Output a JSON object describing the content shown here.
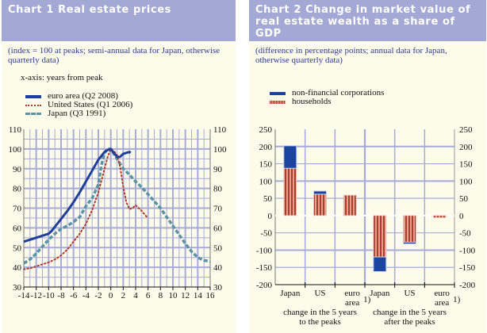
{
  "chart_data": [
    {
      "type": "line",
      "title": "Chart 1 Real estate prices",
      "subtitle": "(index = 100 at peaks; semi-annual data for Japan, otherwise quarterly data)",
      "note": "x-axis: years from peak",
      "xlabel": "years from peak",
      "ylabel": "",
      "xlim": [
        -14,
        16
      ],
      "ylim": [
        30,
        110
      ],
      "xticks": [
        "-14",
        "-12",
        "-10",
        "-8",
        "-6",
        "-4",
        "-2",
        "0",
        "2",
        "4",
        "6",
        "8",
        "10",
        "12",
        "14",
        "16"
      ],
      "yticks": [
        "30",
        "40",
        "50",
        "60",
        "70",
        "80",
        "90",
        "100",
        "110"
      ],
      "grid": true,
      "legend_position": "top-left",
      "series": [
        {
          "name": "euro area (Q2 2008)",
          "color": "#1f3f9b",
          "style": "solid",
          "x": [
            -14,
            -13,
            -12,
            -11.5,
            -11,
            -10.5,
            -10,
            -9.5,
            -9,
            -8.5,
            -8,
            -7,
            -6,
            -5,
            -4,
            -3,
            -2,
            -1,
            -0.5,
            0,
            0.5,
            1,
            1.5,
            2,
            2.5,
            3,
            3.2
          ],
          "y": [
            53,
            54,
            55,
            55.5,
            56,
            56.5,
            57,
            58.5,
            60.5,
            62.5,
            64.5,
            68.5,
            73,
            78,
            83.5,
            89,
            94.5,
            98.5,
            99.5,
            100,
            98,
            96,
            96,
            97.5,
            98,
            98.5,
            98
          ]
        },
        {
          "name": "United States (Q1 2006)",
          "color": "#b03a2e",
          "style": "dotted",
          "x": [
            -14,
            -13,
            -12,
            -11,
            -10,
            -9,
            -8,
            -7,
            -6,
            -5,
            -4,
            -3,
            -2,
            -1,
            -0.5,
            0,
            0.5,
            1,
            1.5,
            2,
            2.5,
            3,
            3.5,
            4,
            4.5,
            5,
            5.8
          ],
          "y": [
            39,
            39.5,
            40.5,
            41.5,
            42.5,
            44,
            46,
            49,
            53,
            57,
            62,
            69,
            78,
            90,
            96,
            100,
            99,
            97,
            91,
            81,
            73,
            69.5,
            70,
            71.5,
            70,
            68.5,
            65.5
          ]
        },
        {
          "name": "Japan (Q3 1991)",
          "color": "#5b93a6",
          "style": "dashed",
          "x": [
            -14,
            -13,
            -12,
            -11,
            -10,
            -9,
            -8,
            -7,
            -6,
            -5,
            -4,
            -3,
            -2,
            -1.5,
            -1,
            -0.5,
            0,
            1,
            2,
            3,
            4,
            5,
            6,
            7,
            8,
            9,
            10,
            11,
            12,
            13,
            14,
            15,
            16
          ],
          "y": [
            42,
            44,
            47,
            50.5,
            54,
            57,
            59.5,
            61,
            63,
            65.5,
            71,
            75,
            82,
            92,
            98,
            100,
            100,
            95,
            90,
            87,
            83.5,
            80.5,
            77,
            73.5,
            70,
            65.5,
            61,
            56.5,
            52,
            48,
            45,
            43.5,
            43
          ]
        }
      ]
    },
    {
      "type": "bar",
      "stacked": true,
      "title": "Chart 2 Change in market value of real estate wealth as a share of GDP",
      "subtitle": "(difference in percentage points; annual data for Japan, otherwise quarterly data)",
      "xlabel": "",
      "ylabel": "",
      "ylim": [
        -200,
        250
      ],
      "yticks": [
        "-200",
        "-150",
        "-100",
        "-50",
        "0",
        "50",
        "100",
        "150",
        "200",
        "250"
      ],
      "grid": true,
      "legend_position": "top-left",
      "categories": [
        "Japan",
        "US",
        "euro area",
        "Japan",
        "US",
        "euro area"
      ],
      "category_footnotes": [
        "",
        "",
        "1)",
        "",
        "",
        "1)"
      ],
      "groups": [
        {
          "label_line1": "change in the 5 years",
          "label_line2": "to the peaks",
          "categories": [
            0,
            1,
            2
          ]
        },
        {
          "label_line1": "change in the 5 years",
          "label_line2": "after the peaks",
          "categories": [
            3,
            4,
            5
          ]
        }
      ],
      "series": [
        {
          "name": "households",
          "color": "#b03a2e",
          "stripe_color": "#e0a48c",
          "values": [
            137,
            62,
            59,
            -120,
            -77,
            -6
          ]
        },
        {
          "name": "non-financial corporations",
          "color": "#1a44a0",
          "values": [
            65,
            9,
            0,
            -42,
            -5,
            0
          ]
        }
      ]
    }
  ],
  "colors": {
    "header_bg": "#a3a8d4",
    "panel_bg": "#fdfbea",
    "grid": "#a6abd8",
    "subtitle_text": "#2d3c8c"
  }
}
